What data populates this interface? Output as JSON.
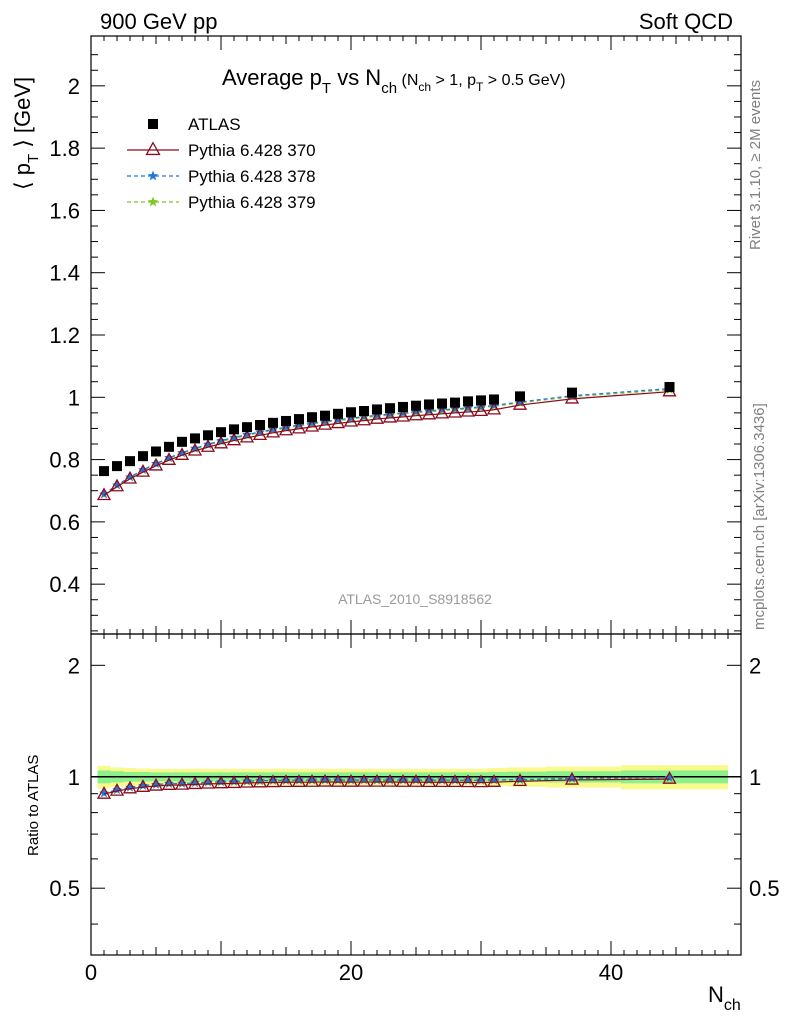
{
  "header": {
    "left": "900 GeV pp",
    "right": "Soft QCD"
  },
  "side_labels": {
    "rivet": "Rivet 3.1.10, ≥ 2M events",
    "mcplots": "mcplots.cern.ch [arXiv:1306.3436]"
  },
  "colors": {
    "atlas": "#000000",
    "p370": "#8b0a1e",
    "p378": "#1e78dc",
    "p379": "#7ec820",
    "band_inner": "#8cf08c",
    "band_outer": "#fafa8c"
  },
  "chart_data": {
    "type": "scatter",
    "title": {
      "main": "Average p",
      "main_sub": "T",
      "mid": " vs N",
      "mid_sub": "ch",
      "cut_a": " (N",
      "cut_a_sub": "ch",
      "cut_b": " > 1, p",
      "cut_b_sub": "T",
      "cut_c": " > 0.5 GeV)"
    },
    "ylabel": {
      "pre": "⟨ p",
      "sub": "T",
      "post": " ⟩ [GeV]"
    },
    "xlabel": {
      "main": "N",
      "sub": "ch"
    },
    "ratio_ylabel": "Ratio to ATLAS",
    "watermark": "ATLAS_2010_S8918562",
    "xlim": [
      0,
      50
    ],
    "ylim": [
      0.24,
      2.16
    ],
    "ratio_ylim": [
      0.33,
      2.43
    ],
    "x_ticks": [
      0,
      20,
      40
    ],
    "x_tick_labels": [
      "0",
      "20",
      "40"
    ],
    "y_ticks": [
      0.4,
      0.6,
      0.8,
      1,
      1.2,
      1.4,
      1.6,
      1.8,
      2
    ],
    "y_tick_labels": [
      "0.4",
      "0.6",
      "0.8",
      "1",
      "1.2",
      "1.4",
      "1.6",
      "1.8",
      "2"
    ],
    "ratio_ticks": [
      0.5,
      1,
      2
    ],
    "ratio_tick_labels": [
      "0.5",
      "1",
      "2"
    ],
    "legend": [
      "ATLAS",
      "Pythia 6.428 370",
      "Pythia 6.428 378",
      "Pythia 6.428 379"
    ],
    "x": [
      1,
      2,
      3,
      4,
      5,
      6,
      7,
      8,
      9,
      10,
      11,
      12,
      13,
      14,
      15,
      16,
      17,
      18,
      19,
      20,
      21,
      22,
      23,
      24,
      25,
      26,
      27,
      28,
      29,
      30,
      31,
      33,
      37,
      44.5
    ],
    "series": [
      {
        "name": "ATLAS",
        "values": [
          0.763,
          0.779,
          0.795,
          0.811,
          0.826,
          0.841,
          0.857,
          0.868,
          0.878,
          0.888,
          0.897,
          0.904,
          0.911,
          0.918,
          0.924,
          0.93,
          0.936,
          0.941,
          0.947,
          0.952,
          0.956,
          0.961,
          0.965,
          0.969,
          0.973,
          0.977,
          0.98,
          0.983,
          0.987,
          0.99,
          0.993,
          1.003,
          1.015,
          1.033
        ]
      },
      {
        "name": "Pythia 6.428 370",
        "values": [
          0.685,
          0.713,
          0.738,
          0.76,
          0.78,
          0.798,
          0.814,
          0.828,
          0.84,
          0.851,
          0.861,
          0.87,
          0.878,
          0.886,
          0.893,
          0.899,
          0.905,
          0.911,
          0.916,
          0.921,
          0.925,
          0.93,
          0.934,
          0.937,
          0.941,
          0.944,
          0.947,
          0.95,
          0.953,
          0.955,
          0.96,
          0.975,
          0.995,
          1.018
        ]
      },
      {
        "name": "Pythia 6.428 378",
        "values": [
          0.689,
          0.718,
          0.744,
          0.767,
          0.787,
          0.806,
          0.822,
          0.836,
          0.849,
          0.861,
          0.871,
          0.88,
          0.889,
          0.897,
          0.904,
          0.911,
          0.917,
          0.923,
          0.928,
          0.933,
          0.938,
          0.942,
          0.946,
          0.95,
          0.954,
          0.957,
          0.96,
          0.963,
          0.966,
          0.969,
          0.974,
          0.985,
          1.005,
          1.028
        ]
      },
      {
        "name": "Pythia 6.428 379",
        "values": [
          0.688,
          0.717,
          0.743,
          0.766,
          0.786,
          0.804,
          0.82,
          0.834,
          0.847,
          0.858,
          0.868,
          0.878,
          0.886,
          0.894,
          0.901,
          0.908,
          0.914,
          0.92,
          0.925,
          0.93,
          0.935,
          0.939,
          0.943,
          0.947,
          0.951,
          0.954,
          0.957,
          0.96,
          0.963,
          0.966,
          0.971,
          0.982,
          1.002,
          1.024
        ]
      }
    ],
    "bands": {
      "inner_rel": [
        0.04,
        0.035,
        0.03,
        0.03,
        0.028,
        0.028,
        0.028,
        0.028,
        0.028,
        0.028,
        0.028,
        0.028,
        0.028,
        0.028,
        0.028,
        0.028,
        0.028,
        0.028,
        0.028,
        0.028,
        0.028,
        0.028,
        0.028,
        0.028,
        0.028,
        0.028,
        0.028,
        0.028,
        0.028,
        0.028,
        0.03,
        0.032,
        0.035,
        0.04
      ],
      "outer_rel": [
        0.07,
        0.06,
        0.055,
        0.052,
        0.05,
        0.05,
        0.05,
        0.05,
        0.05,
        0.05,
        0.05,
        0.05,
        0.05,
        0.05,
        0.05,
        0.05,
        0.05,
        0.05,
        0.05,
        0.05,
        0.05,
        0.05,
        0.05,
        0.05,
        0.05,
        0.05,
        0.05,
        0.05,
        0.05,
        0.05,
        0.055,
        0.06,
        0.065,
        0.075
      ]
    }
  }
}
